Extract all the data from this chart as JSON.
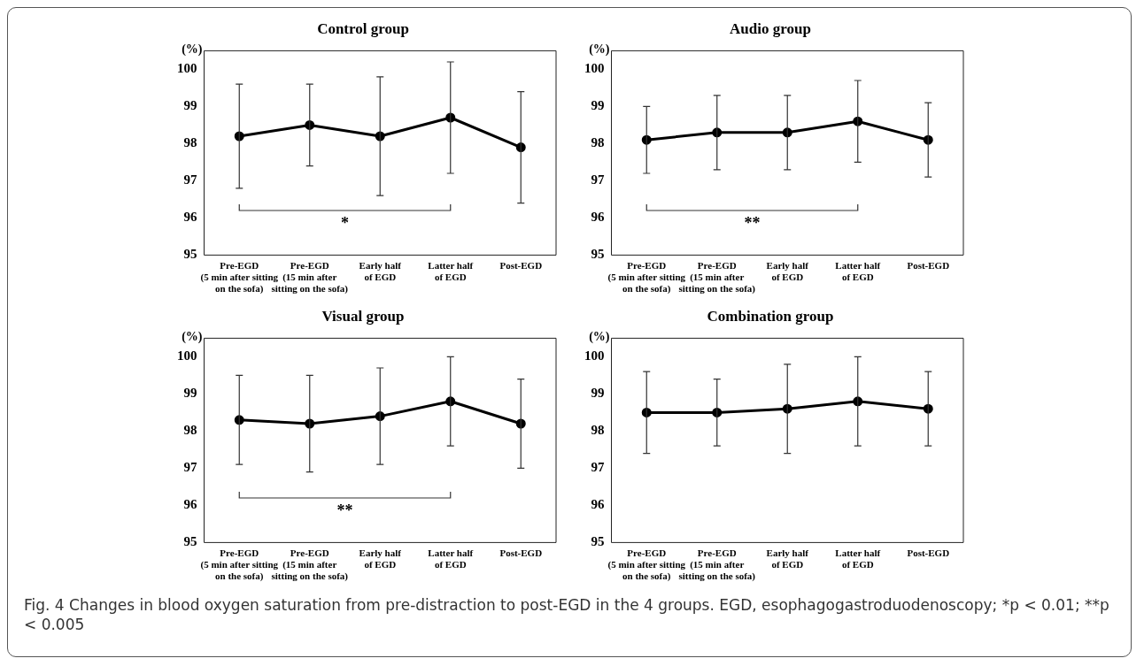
{
  "chart_data": [
    {
      "type": "line",
      "title": "Control group",
      "ylabel": "(%)",
      "categories": [
        "Pre-EGD\n(5 min after sitting\non the sofa)",
        "Pre-EGD\n(15 min after\nsitting on the sofa)",
        "Early half\nof EGD",
        "Latter half\nof EGD",
        "Post-EGD"
      ],
      "series": [
        {
          "color": "#000000",
          "values": [
            98.2,
            98.5,
            98.2,
            98.7,
            97.9
          ],
          "errors": [
            [
              96.8,
              99.6
            ],
            [
              97.4,
              99.6
            ],
            [
              96.6,
              99.8
            ],
            [
              97.2,
              100.2
            ],
            [
              96.4,
              99.4
            ]
          ]
        }
      ],
      "ylim": [
        95,
        100.5
      ],
      "yticks": [
        95,
        96,
        97,
        98,
        99,
        100
      ],
      "grid": false,
      "legend": false,
      "marker": "circle",
      "line_style": "solid",
      "annotations": [
        "*"
      ]
    },
    {
      "type": "line",
      "title": "Audio group",
      "ylabel": "(%)",
      "categories": [
        "Pre-EGD\n(5 min after sitting\non the sofa)",
        "Pre-EGD\n(15 min after\nsitting on the sofa)",
        "Early half\nof EGD",
        "Latter half\nof EGD",
        "Post-EGD"
      ],
      "series": [
        {
          "color": "#000000",
          "values": [
            98.1,
            98.3,
            98.3,
            98.6,
            98.1
          ],
          "errors": [
            [
              97.2,
              99.0
            ],
            [
              97.3,
              99.3
            ],
            [
              97.3,
              99.3
            ],
            [
              97.5,
              99.7
            ],
            [
              97.1,
              99.1
            ]
          ]
        }
      ],
      "ylim": [
        95,
        100.5
      ],
      "yticks": [
        95,
        96,
        97,
        98,
        99,
        100
      ],
      "grid": false,
      "legend": false,
      "marker": "circle",
      "line_style": "solid",
      "annotations": [
        "**"
      ]
    },
    {
      "type": "line",
      "title": "Visual group",
      "ylabel": "(%)",
      "categories": [
        "Pre-EGD\n(5 min after sitting\non the sofa)",
        "Pre-EGD\n(15 min after\nsitting on the sofa)",
        "Early half\nof EGD",
        "Latter half\nof EGD",
        "Post-EGD"
      ],
      "series": [
        {
          "color": "#000000",
          "values": [
            98.3,
            98.2,
            98.4,
            98.8,
            98.2
          ],
          "errors": [
            [
              97.1,
              99.5
            ],
            [
              96.9,
              99.5
            ],
            [
              97.1,
              99.7
            ],
            [
              97.6,
              100.0
            ],
            [
              97.0,
              99.4
            ]
          ]
        }
      ],
      "ylim": [
        95,
        100.5
      ],
      "yticks": [
        95,
        96,
        97,
        98,
        99,
        100
      ],
      "grid": false,
      "legend": false,
      "marker": "circle",
      "line_style": "solid",
      "annotations": [
        "**"
      ]
    },
    {
      "type": "line",
      "title": "Combination group",
      "ylabel": "(%)",
      "categories": [
        "Pre-EGD\n(5 min after sitting\non the sofa)",
        "Pre-EGD\n(15 min after\nsitting on the sofa)",
        "Early half\nof EGD",
        "Latter half\nof EGD",
        "Post-EGD"
      ],
      "series": [
        {
          "color": "#000000",
          "values": [
            98.5,
            98.5,
            98.6,
            98.8,
            98.6
          ],
          "errors": [
            [
              97.4,
              99.6
            ],
            [
              97.6,
              99.4
            ],
            [
              97.4,
              99.8
            ],
            [
              97.6,
              100.0
            ],
            [
              97.6,
              99.6
            ]
          ]
        }
      ],
      "ylim": [
        95,
        100.5
      ],
      "yticks": [
        95,
        96,
        97,
        98,
        99,
        100
      ],
      "grid": false,
      "legend": false,
      "marker": "circle",
      "line_style": "solid",
      "annotations": [
        "Fig. 4 Changes in blood oxygen saturation from pre-distraction to post-EGD in the 4 groups. EGD, esophagogastroduodenoscopy; *p < 0.01; **p < 0.005"
      ]
    }
  ]
}
